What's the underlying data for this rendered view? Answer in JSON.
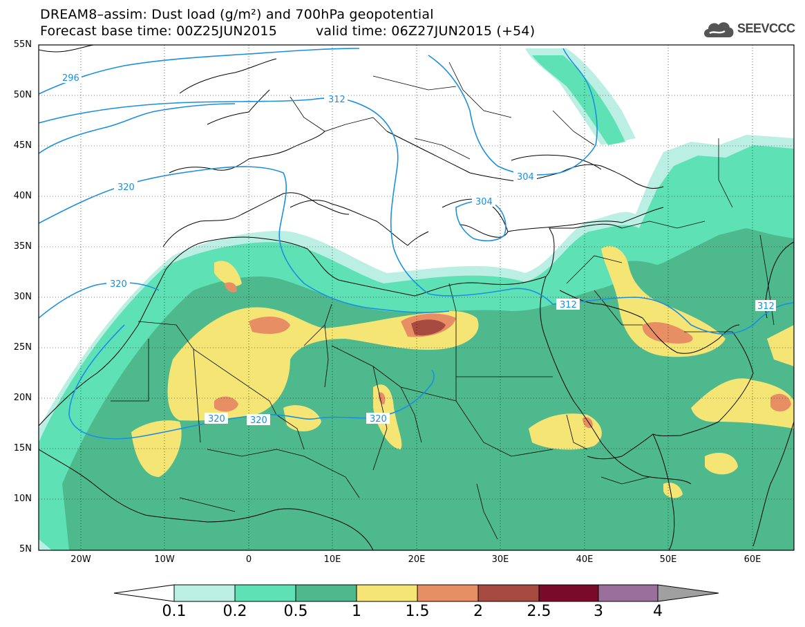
{
  "title": {
    "line1": "DREAM8–assim: Dust load (g/m²) and 700hPa geopotential",
    "base": "Forecast base time: 00Z25JUN2015",
    "valid": "valid time: 06Z27JUN2015 (+54)"
  },
  "logo": {
    "text": "SEEVCCC",
    "icon": "cloud-logo-icon"
  },
  "map": {
    "lat_labels": [
      "55N",
      "50N",
      "45N",
      "40N",
      "35N",
      "30N",
      "25N",
      "20N",
      "15N",
      "10N",
      "5N"
    ],
    "lon_labels": [
      "20W",
      "10W",
      "0",
      "10E",
      "20E",
      "30E",
      "40E",
      "50E",
      "60E"
    ],
    "contour_labels": [
      "296",
      "312",
      "320",
      "304",
      "304",
      "312",
      "312",
      "320",
      "320",
      "320",
      "320"
    ],
    "grid": true
  },
  "colorbar": {
    "ticks": [
      "0.1",
      "0.2",
      "0.5",
      "1",
      "1.5",
      "2",
      "2.5",
      "3",
      "4"
    ],
    "colors": [
      "#ffffff",
      "#bcefe3",
      "#5fe1b6",
      "#4fb98e",
      "#f5e575",
      "#e88e65",
      "#a74a40",
      "#7a0a29",
      "#9b6f9b",
      "#a0a0a0"
    ]
  }
}
